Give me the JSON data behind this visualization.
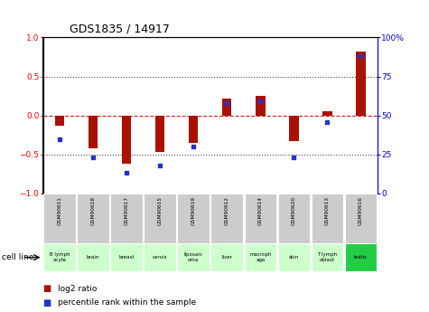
{
  "title": "GDS1835 / 14917",
  "samples": [
    "GSM90611",
    "GSM90618",
    "GSM90617",
    "GSM90615",
    "GSM90619",
    "GSM90612",
    "GSM90614",
    "GSM90620",
    "GSM90613",
    "GSM90616"
  ],
  "cell_lines": [
    "B lymph\nocyte",
    "brain",
    "breast",
    "cervix",
    "liposarc\noma",
    "liver",
    "macroph\nage",
    "skin",
    "T lymph\noblast",
    "testis"
  ],
  "log2_ratio": [
    -0.13,
    -0.42,
    -0.62,
    -0.47,
    -0.35,
    0.22,
    0.25,
    -0.33,
    0.05,
    0.82
  ],
  "percentile_rank": [
    35,
    23,
    13,
    18,
    30,
    58,
    59,
    23,
    46,
    88
  ],
  "ylim_left": [
    -1,
    1
  ],
  "ylim_right": [
    0,
    100
  ],
  "bar_color": "#aa1100",
  "dot_color": "#2233cc",
  "zero_line_color": "#cc2222",
  "dotted_line_color": "#444444",
  "bg_color": "#ffffff",
  "sample_bg": "#cccccc",
  "cell_line_bg_default": "#ccffcc",
  "cell_line_bg_highlight": "#22cc44",
  "cell_highlight_idx": [
    9
  ],
  "bar_width": 0.28,
  "title_fontsize": 9,
  "tick_fontsize": 6.5,
  "label_fontsize": 6.5
}
